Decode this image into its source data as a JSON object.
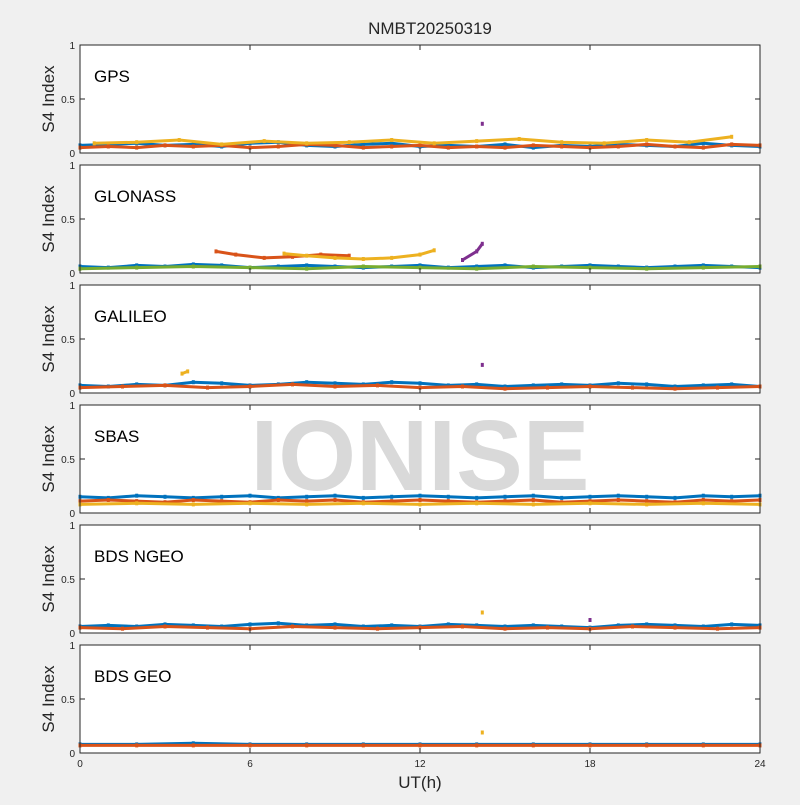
{
  "title": "NMBT20250319",
  "watermark": "IONISE",
  "xlabel": "UT(h)",
  "chart_data": {
    "type": "scatter",
    "title": "NMBT20250319",
    "xlabel": "UT(h)",
    "ylabel": "S4 Index",
    "xlim": [
      0,
      24
    ],
    "ylim": [
      0,
      1
    ],
    "x_ticks": [
      "0",
      "6",
      "12",
      "18",
      "24"
    ],
    "y_ticks": [
      "0",
      "0.5",
      "1"
    ],
    "series_colors": [
      "#0072bd",
      "#d95319",
      "#edb120",
      "#7e2f8e",
      "#77ac30",
      "#4dbeee",
      "#a2142f"
    ],
    "panels": [
      {
        "label": "GPS",
        "ylabel": "S4 Index",
        "series": [
          {
            "x": [
              0,
              1,
              2,
              3,
              4,
              5,
              6,
              7,
              8,
              9,
              10,
              11,
              12,
              13,
              14,
              15,
              16,
              17,
              18,
              19,
              20,
              21,
              22,
              23,
              24
            ],
            "y": [
              0.07,
              0.08,
              0.09,
              0.07,
              0.08,
              0.06,
              0.09,
              0.1,
              0.07,
              0.06,
              0.08,
              0.09,
              0.06,
              0.07,
              0.06,
              0.08,
              0.05,
              0.07,
              0.06,
              0.08,
              0.07,
              0.06,
              0.09,
              0.07,
              0.06
            ]
          },
          {
            "x": [
              0,
              1,
              2,
              3,
              4,
              5,
              6,
              7,
              8,
              9,
              10,
              11,
              12,
              13,
              14,
              15,
              16,
              17,
              18,
              19,
              20,
              21,
              22,
              23,
              24
            ],
            "y": [
              0.05,
              0.06,
              0.05,
              0.07,
              0.06,
              0.07,
              0.05,
              0.06,
              0.08,
              0.07,
              0.05,
              0.06,
              0.07,
              0.05,
              0.06,
              0.05,
              0.07,
              0.06,
              0.05,
              0.06,
              0.08,
              0.06,
              0.05,
              0.08,
              0.07
            ]
          },
          {
            "x": [
              0.5,
              2,
              3.5,
              5,
              6.5,
              8,
              9.5,
              11,
              12.5,
              14,
              15.5,
              17,
              18.5,
              20,
              21.5,
              23
            ],
            "y": [
              0.09,
              0.1,
              0.12,
              0.08,
              0.11,
              0.09,
              0.1,
              0.12,
              0.09,
              0.11,
              0.13,
              0.1,
              0.09,
              0.12,
              0.1,
              0.15
            ]
          },
          {
            "x": [
              14.2
            ],
            "y": [
              0.27
            ]
          }
        ]
      },
      {
        "label": "GLONASS",
        "ylabel": "S4 Index",
        "series": [
          {
            "x": [
              0,
              1,
              2,
              3,
              4,
              5,
              6,
              7,
              8,
              9,
              10,
              11,
              12,
              13,
              14,
              15,
              16,
              17,
              18,
              19,
              20,
              21,
              22,
              23,
              24
            ],
            "y": [
              0.06,
              0.05,
              0.07,
              0.06,
              0.08,
              0.07,
              0.05,
              0.06,
              0.07,
              0.06,
              0.05,
              0.06,
              0.07,
              0.05,
              0.06,
              0.07,
              0.05,
              0.06,
              0.07,
              0.06,
              0.05,
              0.06,
              0.07,
              0.06,
              0.05
            ]
          },
          {
            "x": [
              4.8,
              5.5,
              6.5,
              7.5,
              8.5,
              9.5
            ],
            "y": [
              0.2,
              0.17,
              0.14,
              0.15,
              0.17,
              0.16
            ]
          },
          {
            "x": [
              7.2,
              8,
              9,
              10,
              11,
              12,
              12.5
            ],
            "y": [
              0.18,
              0.16,
              0.14,
              0.13,
              0.14,
              0.17,
              0.21
            ]
          },
          {
            "x": [
              13.5,
              14,
              14.2
            ],
            "y": [
              0.12,
              0.2,
              0.27
            ]
          },
          {
            "x": [
              0,
              2,
              4,
              6,
              8,
              10,
              12,
              14,
              16,
              18,
              20,
              22,
              24
            ],
            "y": [
              0.04,
              0.05,
              0.06,
              0.05,
              0.04,
              0.06,
              0.05,
              0.04,
              0.06,
              0.05,
              0.04,
              0.05,
              0.06
            ]
          }
        ]
      },
      {
        "label": "GALILEO",
        "ylabel": "S4 Index",
        "series": [
          {
            "x": [
              0,
              1,
              2,
              3,
              4,
              5,
              6,
              7,
              8,
              9,
              10,
              11,
              12,
              13,
              14,
              15,
              16,
              17,
              18,
              19,
              20,
              21,
              22,
              23,
              24
            ],
            "y": [
              0.07,
              0.06,
              0.08,
              0.07,
              0.1,
              0.09,
              0.07,
              0.08,
              0.1,
              0.09,
              0.08,
              0.1,
              0.09,
              0.07,
              0.08,
              0.06,
              0.07,
              0.08,
              0.07,
              0.09,
              0.08,
              0.06,
              0.07,
              0.08,
              0.06
            ]
          },
          {
            "x": [
              0,
              1.5,
              3,
              4.5,
              6,
              7.5,
              9,
              10.5,
              12,
              13.5,
              15,
              16.5,
              18,
              19.5,
              21,
              22.5,
              24
            ],
            "y": [
              0.05,
              0.06,
              0.07,
              0.05,
              0.06,
              0.08,
              0.06,
              0.07,
              0.05,
              0.06,
              0.04,
              0.05,
              0.06,
              0.05,
              0.04,
              0.05,
              0.06
            ]
          },
          {
            "x": [
              3.6,
              3.8
            ],
            "y": [
              0.18,
              0.2
            ]
          },
          {
            "x": [
              14.2
            ],
            "y": [
              0.26
            ]
          }
        ]
      },
      {
        "label": "SBAS",
        "ylabel": "S4 Index",
        "series": [
          {
            "x": [
              0,
              1,
              2,
              3,
              4,
              5,
              6,
              7,
              8,
              9,
              10,
              11,
              12,
              13,
              14,
              15,
              16,
              17,
              18,
              19,
              20,
              21,
              22,
              23,
              24
            ],
            "y": [
              0.15,
              0.14,
              0.16,
              0.15,
              0.14,
              0.15,
              0.16,
              0.14,
              0.15,
              0.16,
              0.14,
              0.15,
              0.16,
              0.15,
              0.14,
              0.15,
              0.16,
              0.14,
              0.15,
              0.16,
              0.15,
              0.14,
              0.16,
              0.15,
              0.16
            ]
          },
          {
            "x": [
              0,
              1,
              2,
              3,
              4,
              5,
              6,
              7,
              8,
              9,
              10,
              11,
              12,
              13,
              14,
              15,
              16,
              17,
              18,
              19,
              20,
              21,
              22,
              23,
              24
            ],
            "y": [
              0.11,
              0.12,
              0.11,
              0.1,
              0.12,
              0.11,
              0.1,
              0.12,
              0.11,
              0.12,
              0.1,
              0.11,
              0.12,
              0.11,
              0.1,
              0.11,
              0.12,
              0.1,
              0.11,
              0.12,
              0.11,
              0.1,
              0.12,
              0.11,
              0.12
            ]
          },
          {
            "x": [
              0,
              2,
              4,
              6,
              8,
              10,
              12,
              14,
              16,
              18,
              20,
              22,
              24
            ],
            "y": [
              0.08,
              0.09,
              0.08,
              0.09,
              0.08,
              0.09,
              0.08,
              0.09,
              0.08,
              0.09,
              0.08,
              0.09,
              0.08
            ]
          }
        ]
      },
      {
        "label": "BDS NGEO",
        "ylabel": "S4 Index",
        "series": [
          {
            "x": [
              0,
              1,
              2,
              3,
              4,
              5,
              6,
              7,
              8,
              9,
              10,
              11,
              12,
              13,
              14,
              15,
              16,
              17,
              18,
              19,
              20,
              21,
              22,
              23,
              24
            ],
            "y": [
              0.06,
              0.07,
              0.06,
              0.08,
              0.07,
              0.06,
              0.08,
              0.09,
              0.07,
              0.08,
              0.06,
              0.07,
              0.06,
              0.08,
              0.07,
              0.06,
              0.07,
              0.06,
              0.05,
              0.07,
              0.08,
              0.07,
              0.06,
              0.08,
              0.07
            ]
          },
          {
            "x": [
              0,
              1.5,
              3,
              4.5,
              6,
              7.5,
              9,
              10.5,
              12,
              13.5,
              15,
              16.5,
              18,
              19.5,
              21,
              22.5,
              24
            ],
            "y": [
              0.05,
              0.04,
              0.06,
              0.05,
              0.04,
              0.06,
              0.05,
              0.04,
              0.05,
              0.06,
              0.04,
              0.05,
              0.04,
              0.06,
              0.05,
              0.04,
              0.05
            ]
          },
          {
            "x": [
              14.2
            ],
            "y": [
              0.19
            ]
          },
          {
            "x": [
              18
            ],
            "y": [
              0.12
            ]
          }
        ]
      },
      {
        "label": "BDS GEO",
        "ylabel": "S4 Index",
        "series": [
          {
            "x": [
              0,
              2,
              4,
              6,
              8,
              10,
              12,
              14,
              16,
              18,
              20,
              22,
              24
            ],
            "y": [
              0.08,
              0.08,
              0.09,
              0.08,
              0.08,
              0.08,
              0.08,
              0.08,
              0.08,
              0.08,
              0.08,
              0.08,
              0.08
            ]
          },
          {
            "x": [
              0,
              2,
              4,
              6,
              8,
              10,
              12,
              14,
              16,
              18,
              20,
              22,
              24
            ],
            "y": [
              0.07,
              0.07,
              0.07,
              0.07,
              0.07,
              0.07,
              0.07,
              0.07,
              0.07,
              0.07,
              0.07,
              0.07,
              0.07
            ]
          },
          {
            "x": [
              14.2
            ],
            "y": [
              0.19
            ]
          }
        ]
      }
    ]
  }
}
